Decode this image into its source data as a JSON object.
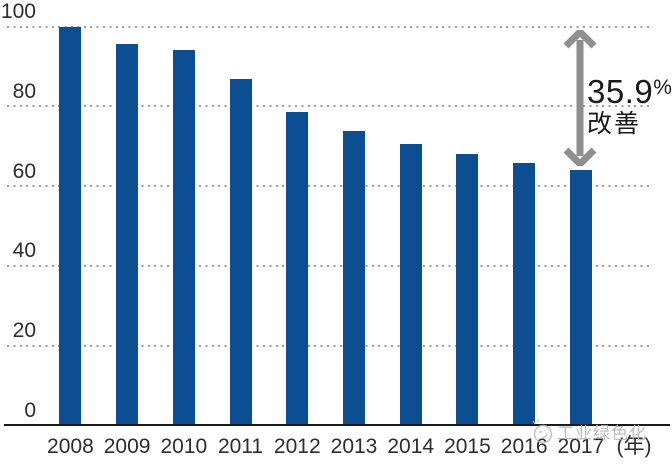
{
  "chart_data": {
    "type": "bar",
    "title": "",
    "categories": [
      "2008",
      "2009",
      "2010",
      "2011",
      "2012",
      "2013",
      "2014",
      "2015",
      "2016",
      "2017"
    ],
    "values": [
      100,
      95.7,
      94.0,
      86.8,
      78.6,
      73.8,
      70.5,
      68.0,
      65.9,
      64.1
    ],
    "xlabel": "(年)",
    "ylabel": "",
    "ylim": [
      0,
      100
    ],
    "yticks": [
      0,
      20,
      40,
      60,
      80,
      100
    ],
    "grid": "horizontal-dotted",
    "legend": "none",
    "bar_color": "#0d4e93",
    "gridline_color": "#9c9c9c",
    "axis_line_color": "#1a1a1a",
    "tick_label_color": "#2d2d2d",
    "annotation": {
      "value_text": "35.9",
      "percent_sign": "%",
      "label": "改善",
      "arrow_from": 100,
      "arrow_to": 64.1,
      "arrow_color": "#8f8f8f",
      "text_color": "#1a1a1a"
    }
  },
  "watermark": {
    "text": "工业绿色化"
  }
}
